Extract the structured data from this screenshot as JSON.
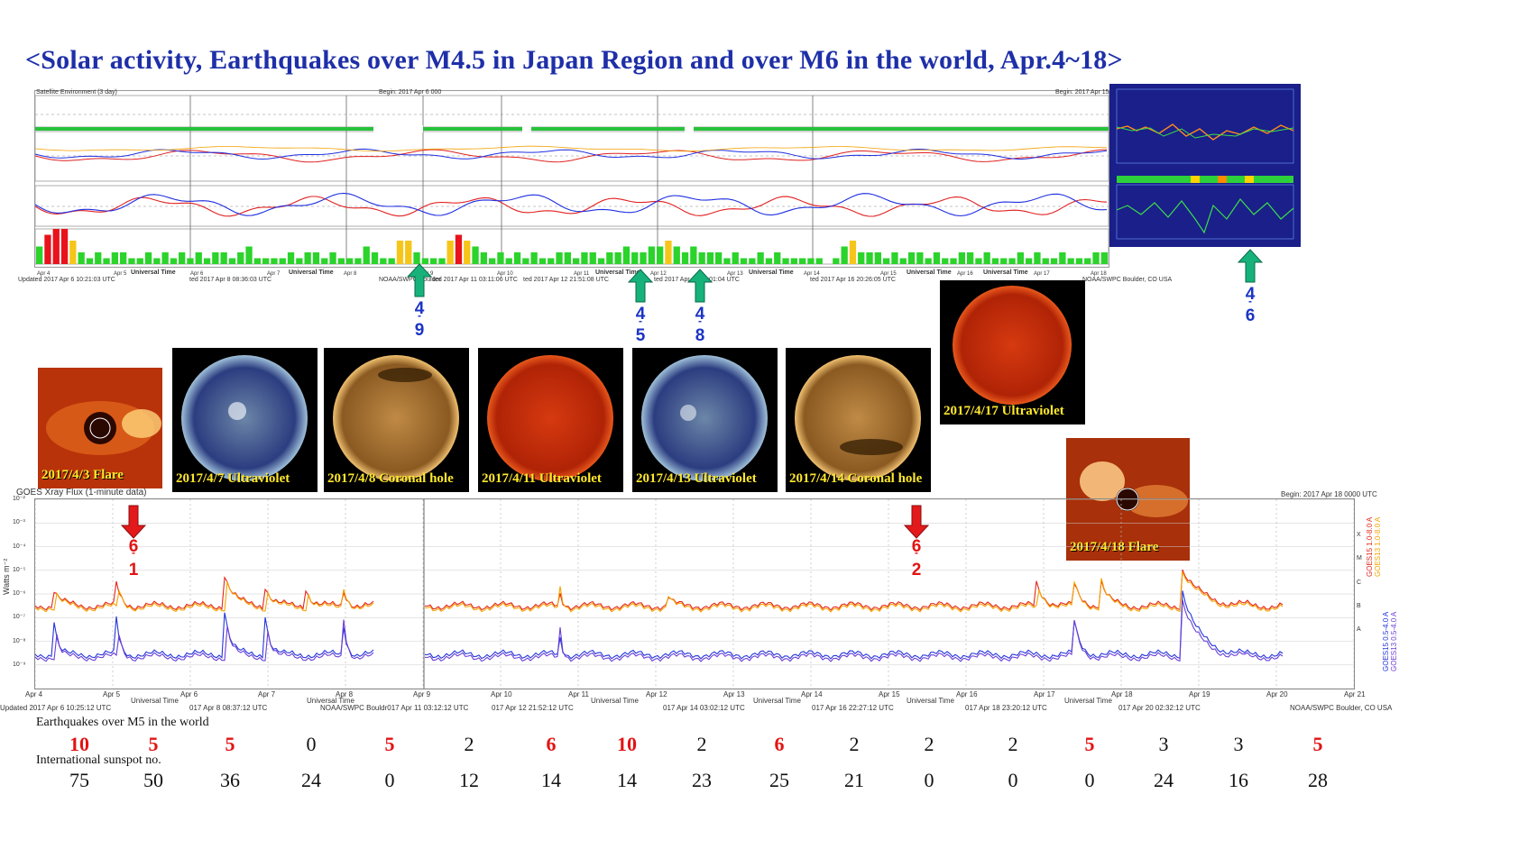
{
  "title": "<Solar activity, Earthquakes over M4.5 in Japan Region and over M6 in the world, Apr.4~18>",
  "colors": {
    "title": "#1e2fa8",
    "high": "#e31313",
    "normal": "#111111",
    "green_arrow": "#17b27a",
    "red_arrow": "#e3191b",
    "caption": "#ffe82b"
  },
  "top_chart": {
    "panel_title": "Satellite Environment (3 day)",
    "begin_labels": [
      "Begin: 2017 Apr 6 000",
      "Begin: 2017 Apr 15"
    ],
    "updated_labels": [
      "Updated 2017 Apr 6 10:21:03 UTC",
      "ted 2017 Apr 8 08:36:03 UTC",
      "NOAA/SWPC Boulder",
      "ted 2017 Apr 11 03:11:06 UTC",
      "ted 2017 Apr 12 21:51:08 UTC",
      "ted 2017 Apr 14 03:01:04 UTC",
      "ted 2017 Apr 16 20:26:05 UTC",
      "NOAA/SWPC Boulder, CO USA"
    ],
    "x_ticks": [
      "Apr 4",
      "Apr 5",
      "Apr 6",
      "Apr 7",
      "Apr 8",
      "Apr 9",
      "Apr 10",
      "Apr 11",
      "Apr 12",
      "Apr 13",
      "Apr 14",
      "Apr 15",
      "Apr 16",
      "Apr 17",
      "Apr 18"
    ],
    "xlabel": "Universal Time"
  },
  "xray_chart": {
    "title": "GOES Xray Flux (1-minute data)",
    "begin": "Begin: 2017 Apr 18 0000 UTC",
    "ylabel": "Watts m⁻²",
    "y_ticks": [
      "10⁻²",
      "10⁻³",
      "10⁻⁴",
      "10⁻⁵",
      "10⁻⁶",
      "10⁻⁷",
      "10⁻⁸",
      "10⁻⁹"
    ],
    "x_ticks": [
      "Apr 4",
      "Apr 5",
      "Apr 6",
      "Apr 7",
      "Apr 8",
      "Apr 9",
      "Apr 10",
      "Apr 11",
      "Apr 12",
      "Apr 13",
      "Apr 14",
      "Apr 15",
      "Apr 16",
      "Apr 17",
      "Apr 18",
      "Apr 19",
      "Apr 20",
      "Apr 21"
    ],
    "xlabel": "Universal Time",
    "right_legend": [
      "GOES15 1.0-8.0 A",
      "GOES13 1.0-8.0 A",
      "GOES15 0.5-4.0 A",
      "GOES13 0.5-4.0 A"
    ],
    "class_letters": [
      "X",
      "M",
      "C",
      "B",
      "A"
    ],
    "updated_labels": [
      "Updated 2017 Apr 6 10:25:12 UTC",
      "017 Apr 8 08:37:12 UTC",
      "NOAA/SWPC Bouldr017 Apr 11 03:12:12 UTC",
      "017 Apr 12 21:52:12 UTC",
      "017 Apr 14 03:02:12 UTC",
      "017 Apr 16 22:27:12 UTC",
      "017 Apr 18 23:20:12 UTC",
      "017 Apr 20 02:32:12 UTC",
      "NOAA/SWPC Boulder, CO USA"
    ]
  },
  "thumbnails": [
    {
      "caption": "2017/4/3 Flare",
      "kind": "coronagraph"
    },
    {
      "caption": "2017/4/7 Ultraviolet",
      "kind": "blue-sun"
    },
    {
      "caption": "2017/4/8 Coronal hole",
      "kind": "gold-sun"
    },
    {
      "caption": "2017/4/11 Ultraviolet",
      "kind": "red-sun"
    },
    {
      "caption": "2017/4/13 Ultraviolet",
      "kind": "blue-sun"
    },
    {
      "caption": "2017/4/14 Coronal hole",
      "kind": "gold-sun"
    },
    {
      "caption": "2017/4/17 Ultraviolet",
      "kind": "red-sun"
    },
    {
      "caption": "2017/4/18 Flare",
      "kind": "coronagraph"
    }
  ],
  "japan_quake_markers": [
    {
      "month": "4",
      "day": "9"
    },
    {
      "month": "4",
      "day": "5"
    },
    {
      "month": "4",
      "day": "8"
    },
    {
      "month": "4",
      "day": "6"
    }
  ],
  "world_quake_markers": [
    {
      "magnitude_int": "6",
      "magnitude_dec": "1"
    },
    {
      "magnitude_int": "6",
      "magnitude_dec": "2"
    }
  ],
  "rows": {
    "earthquakes_label": "Earthquakes over M5 in the world",
    "sunspot_label": "International sunspot no."
  },
  "chart_data": {
    "type": "table",
    "title": "Earthquakes over M5 in the world / International sunspot no.",
    "columns": [
      "Apr 4",
      "Apr 5",
      "Apr 6",
      "Apr 7",
      "Apr 8",
      "Apr 9",
      "Apr 10",
      "Apr 11",
      "Apr 12",
      "Apr 13",
      "Apr 14",
      "Apr 15",
      "Apr 16",
      "Apr 17",
      "Apr 18",
      "Apr 19",
      "Apr 20"
    ],
    "series": [
      {
        "name": "Earthquakes over M5 in the world",
        "values": [
          10,
          5,
          5,
          0,
          5,
          2,
          6,
          10,
          2,
          6,
          2,
          2,
          2,
          5,
          3,
          3,
          5
        ],
        "highlight": [
          true,
          true,
          true,
          false,
          true,
          false,
          true,
          true,
          false,
          true,
          false,
          false,
          false,
          true,
          false,
          false,
          true
        ]
      },
      {
        "name": "International sunspot no.",
        "values": [
          75,
          50,
          36,
          24,
          0,
          12,
          14,
          14,
          23,
          25,
          21,
          0,
          0,
          0,
          24,
          16,
          28
        ]
      }
    ]
  }
}
